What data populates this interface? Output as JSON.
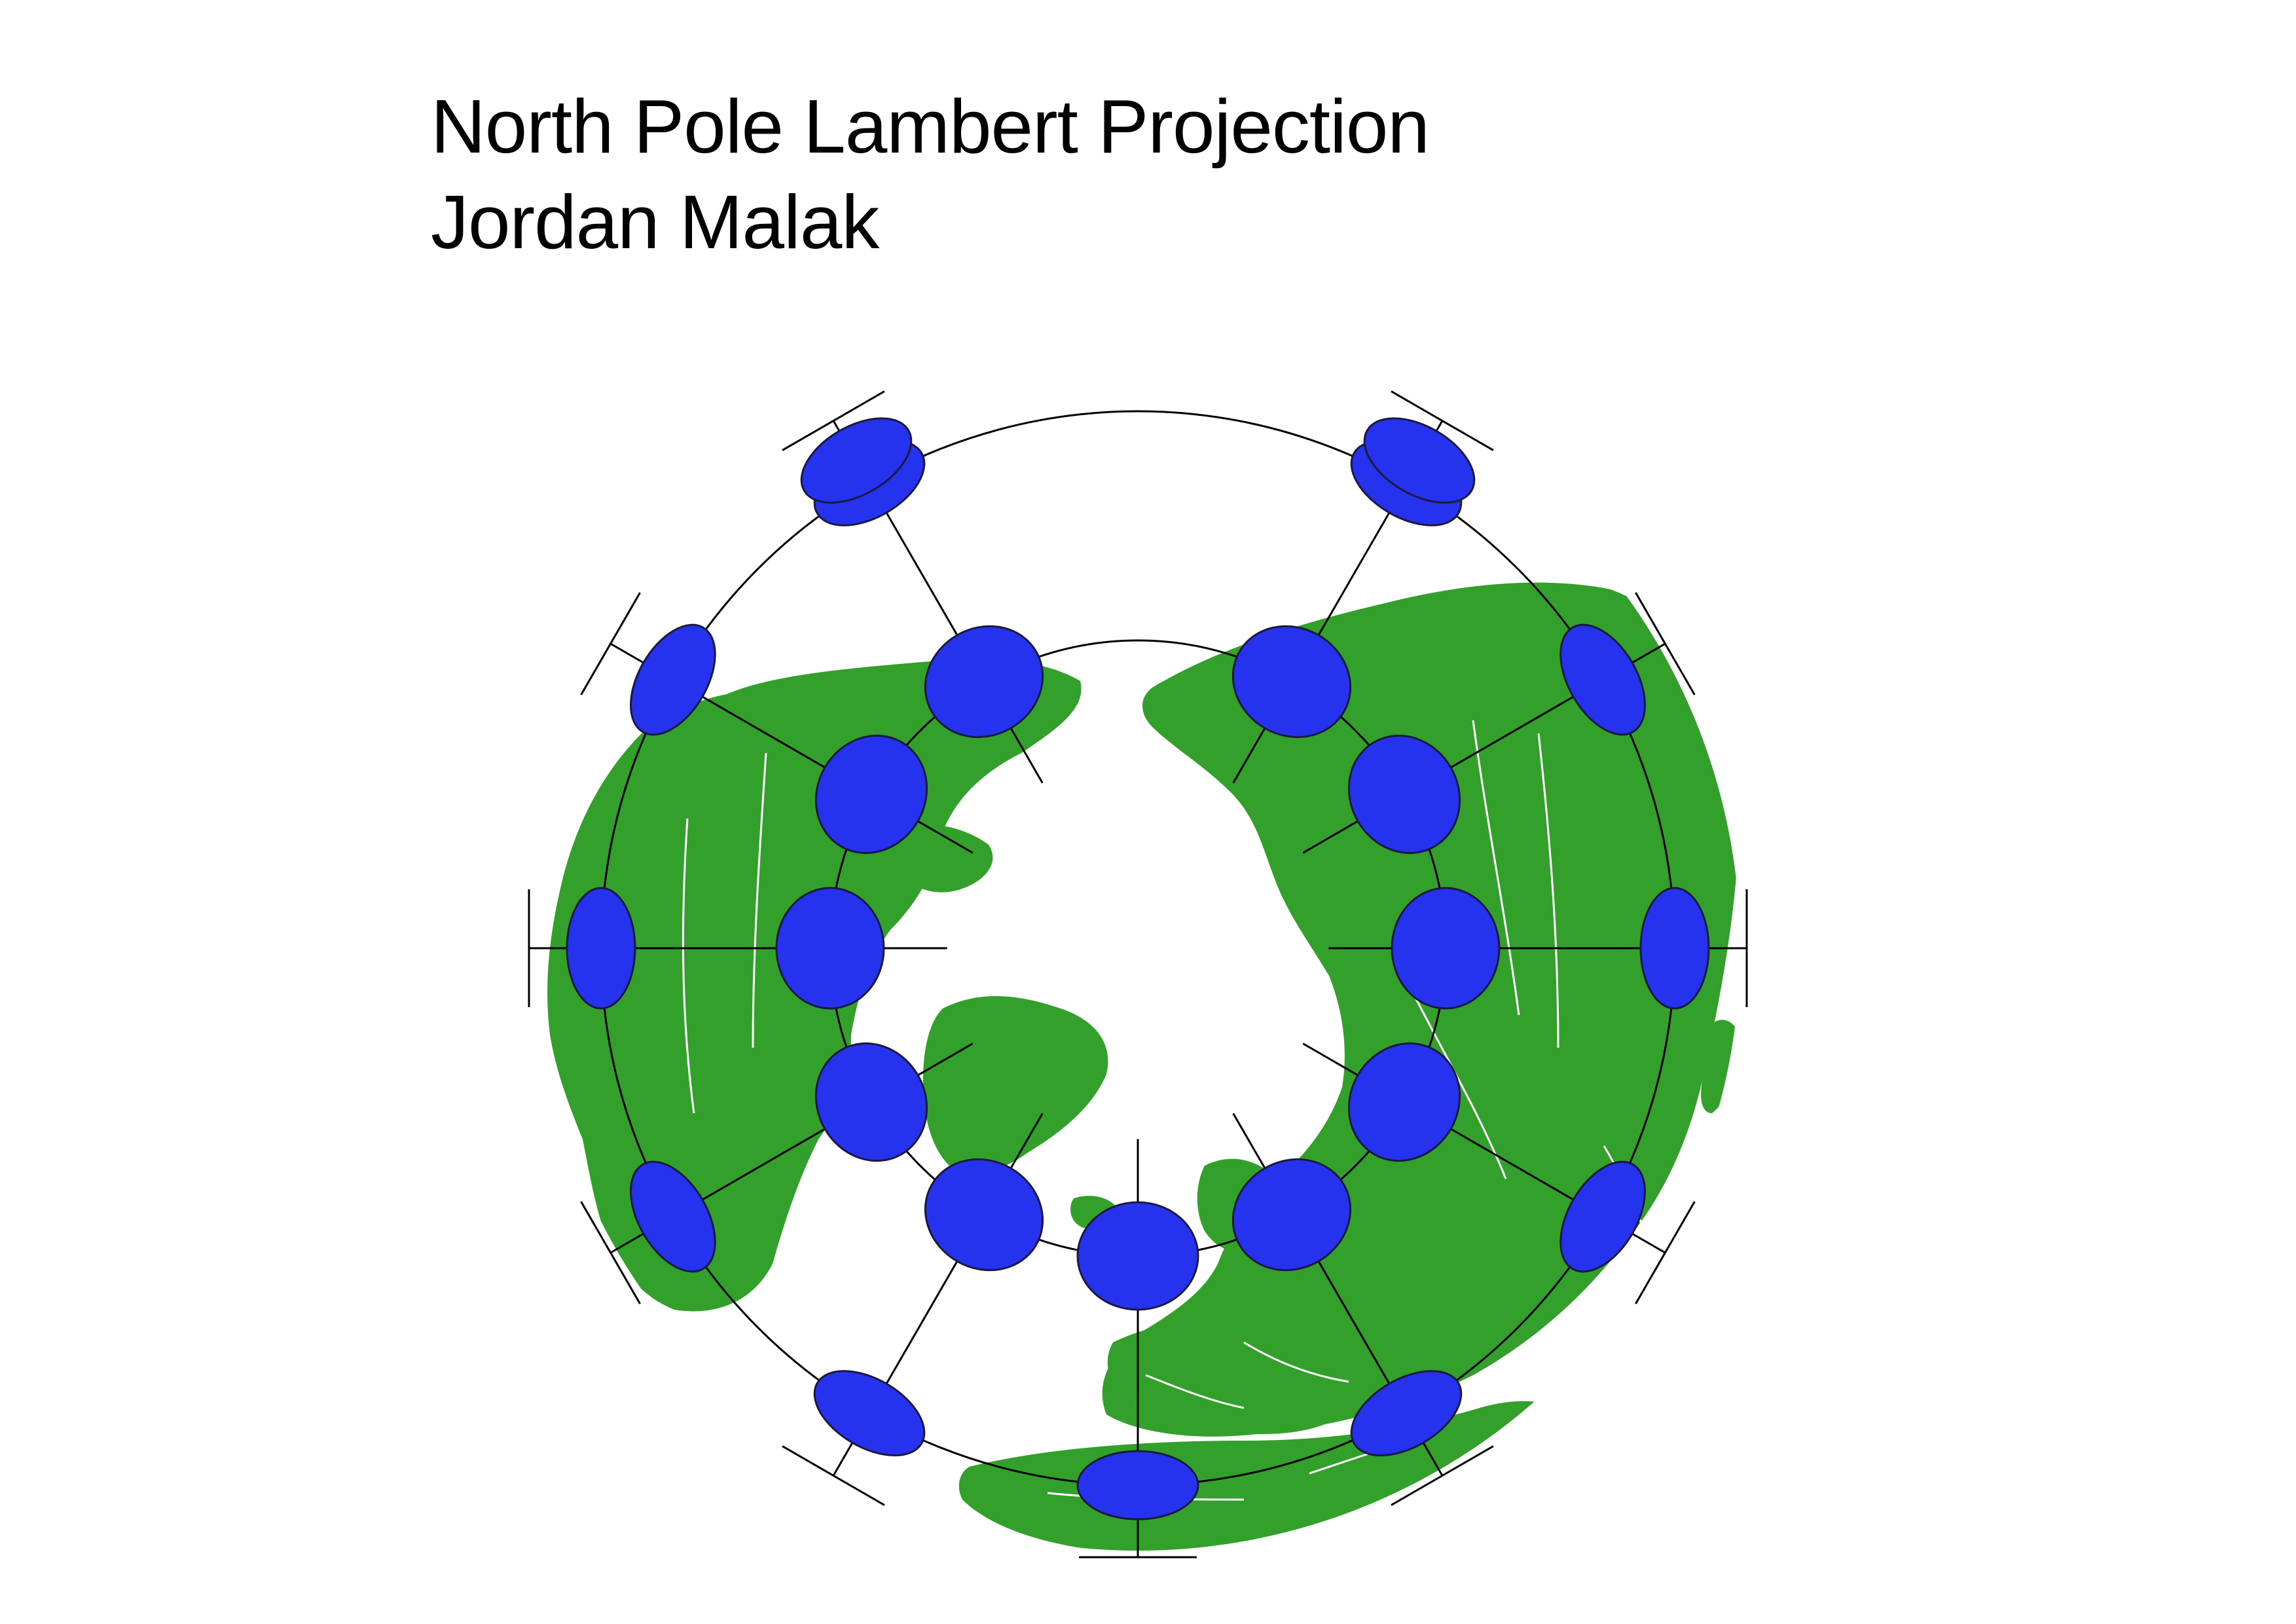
{
  "header": {
    "title": "North Pole Lambert Projection",
    "author": "Jordan Malak"
  },
  "map": {
    "projection": "Lambert azimuthal equal-area",
    "center": "North Pole",
    "colors": {
      "land": "#33A02C",
      "ocean": "#FFFFFF",
      "borders": "#FFFFFF",
      "indicatrix_fill": "#2633EE",
      "indicatrix_edge": "#1A1A40",
      "graticule": "#000000"
    },
    "indicatrix": {
      "inner_ring_latitude": 45,
      "outer_ring_latitude": 0,
      "meridians_deg": [
        0,
        30,
        60,
        90,
        120,
        150,
        180,
        210,
        240,
        270,
        300,
        330
      ]
    }
  }
}
